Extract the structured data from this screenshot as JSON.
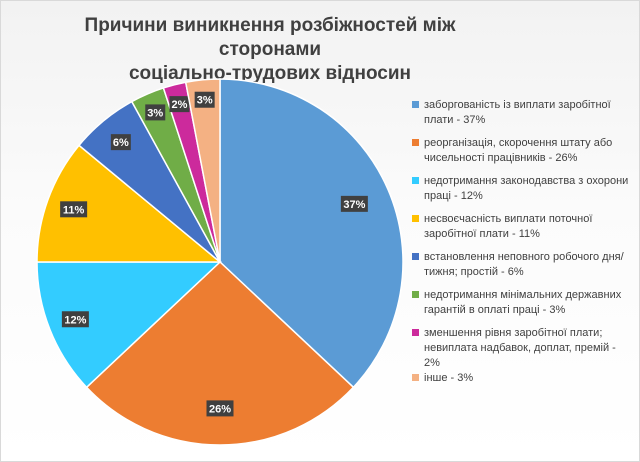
{
  "chart_data": {
    "type": "pie",
    "title": "Причини виникнення розбіжностей між сторонами соціально-трудових відносин",
    "title_lines": [
      "Причини виникнення розбіжностей між сторонами",
      "соціально-трудових відносин"
    ],
    "legend_position": "right",
    "slices": [
      {
        "label": "заборгованість із виплати заробітної плати - 37%",
        "value": 37,
        "data_label": "37%",
        "color": "#5b9bd5"
      },
      {
        "label": "реорганізація, скорочення штату або чисельності працівників - 26%",
        "value": 26,
        "data_label": "26%",
        "color": "#ed7d31"
      },
      {
        "label": "недотримання законодавства з охорони праці - 12%",
        "value": 12,
        "data_label": "12%",
        "color": "#33ccff"
      },
      {
        "label": "несвоєчасність виплати поточної заробітної плати - 11%",
        "value": 11,
        "data_label": "11%",
        "color": "#ffc000"
      },
      {
        "label": "встановлення неповного робочого дня/тижня; простій - 6%",
        "value": 6,
        "data_label": "6%",
        "color": "#4472c4"
      },
      {
        "label": "недотримання мінімальних державних гарантій в оплаті праці - 3%",
        "value": 3,
        "data_label": "3%",
        "color": "#70ad47"
      },
      {
        "label": "зменшення рівня заробітної плати; невиплата надбавок, доплат, премій - 2%",
        "value": 2,
        "data_label": "2%",
        "color": "#cc2a9c"
      },
      {
        "label": "інше - 3%",
        "value": 3,
        "data_label": "3%",
        "color": "#f4b183"
      }
    ]
  }
}
